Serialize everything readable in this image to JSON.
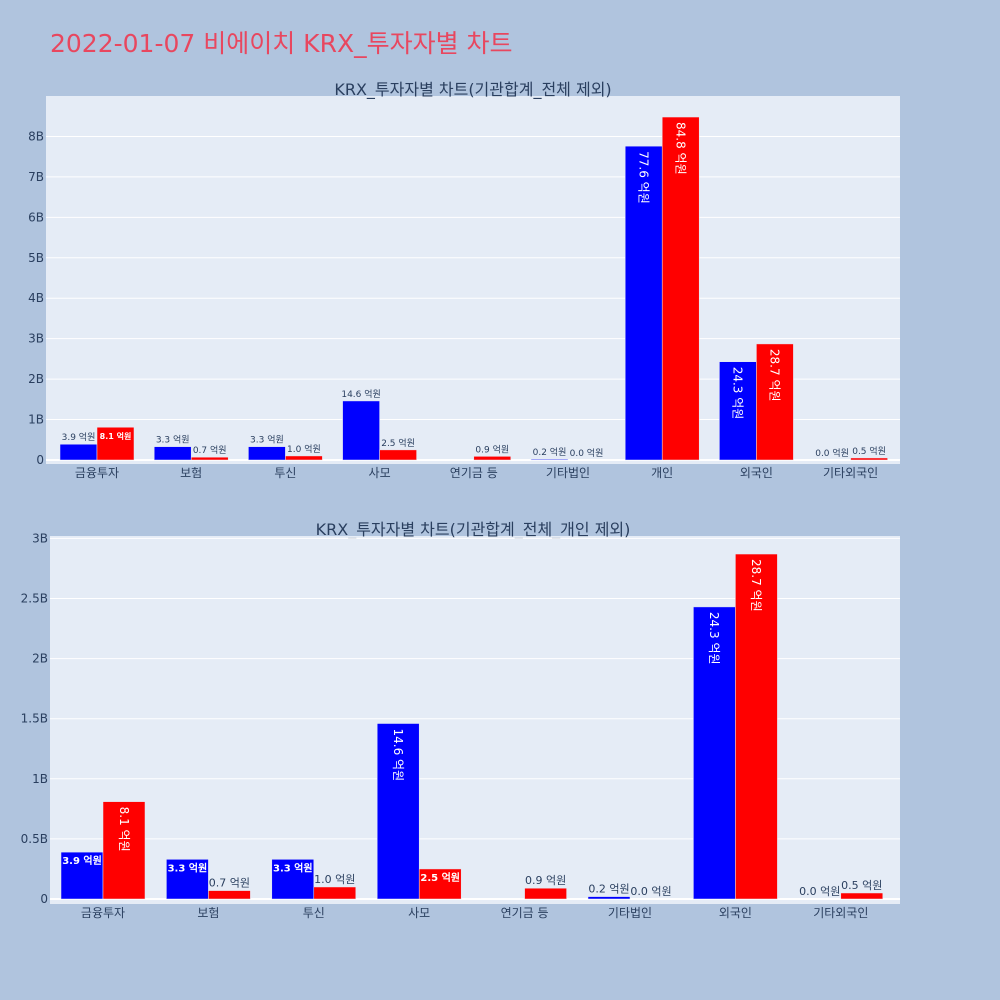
{
  "page": {
    "title": "2022-01-07 비에이치 KRX_투자자별 차트",
    "background": "#b0c4de",
    "title_color": "#e8475f",
    "plot_background": "#e5ecf6"
  },
  "chart_data": [
    {
      "type": "bar",
      "title": "KRX_투자자별 차트(기관합계_전체 제외)",
      "categories": [
        "금융투자",
        "보험",
        "투신",
        "사모",
        "연기금 등",
        "기타법인",
        "개인",
        "외국인",
        "기타외국인"
      ],
      "ylim": [
        0,
        9
      ],
      "yticks": [
        0,
        1,
        2,
        3,
        4,
        5,
        6,
        7,
        8
      ],
      "ytick_labels": [
        "0",
        "1B",
        "2B",
        "3B",
        "4B",
        "5B",
        "6B",
        "7B",
        "8B"
      ],
      "grid": true,
      "series": [
        {
          "color": "#0000ff",
          "values": [
            0.39,
            0.33,
            0.33,
            1.46,
            0.0,
            0.02,
            7.76,
            2.43,
            0.0
          ],
          "labels": [
            "3.9 억원",
            "3.3 억원",
            "3.3 억원",
            "14.6 억원",
            "",
            "0.2 억원",
            "77.6 억원",
            "24.3 억원",
            "0.0 억원"
          ]
        },
        {
          "color": "#ff0000",
          "values": [
            0.81,
            0.07,
            0.1,
            0.25,
            0.09,
            0.0,
            8.48,
            2.87,
            0.05
          ],
          "labels": [
            "8.1 억원",
            "0.7 억원",
            "1.0 억원",
            "2.5 억원",
            "0.9 억원",
            "0.0 억원",
            "84.8 억원",
            "28.7 억원",
            "0.5 억원"
          ]
        }
      ]
    },
    {
      "type": "bar",
      "title": "KRX_투자자별 차트(기관합계_전체_개인 제외)",
      "categories": [
        "금융투자",
        "보험",
        "투신",
        "사모",
        "연기금 등",
        "기타법인",
        "외국인",
        "기타외국인"
      ],
      "ylim": [
        0,
        3.02
      ],
      "yticks": [
        0,
        0.5,
        1,
        1.5,
        2,
        2.5,
        3
      ],
      "ytick_labels": [
        "0",
        "0.5B",
        "1B",
        "1.5B",
        "2B",
        "2.5B",
        "3B"
      ],
      "grid": true,
      "series": [
        {
          "color": "#0000ff",
          "values": [
            0.39,
            0.33,
            0.33,
            1.46,
            0.0,
            0.02,
            2.43,
            0.0
          ],
          "labels": [
            "3.9 억원",
            "3.3 억원",
            "3.3 억원",
            "14.6 억원",
            "",
            "0.2 억원",
            "24.3 억원",
            "0.0 억원"
          ]
        },
        {
          "color": "#ff0000",
          "values": [
            0.81,
            0.07,
            0.1,
            0.25,
            0.09,
            0.0,
            2.87,
            0.05
          ],
          "labels": [
            "8.1 억원",
            "0.7 억원",
            "1.0 억원",
            "2.5 억원",
            "0.9 억원",
            "0.0 억원",
            "28.7 억원",
            "0.5 억원"
          ]
        }
      ]
    }
  ]
}
